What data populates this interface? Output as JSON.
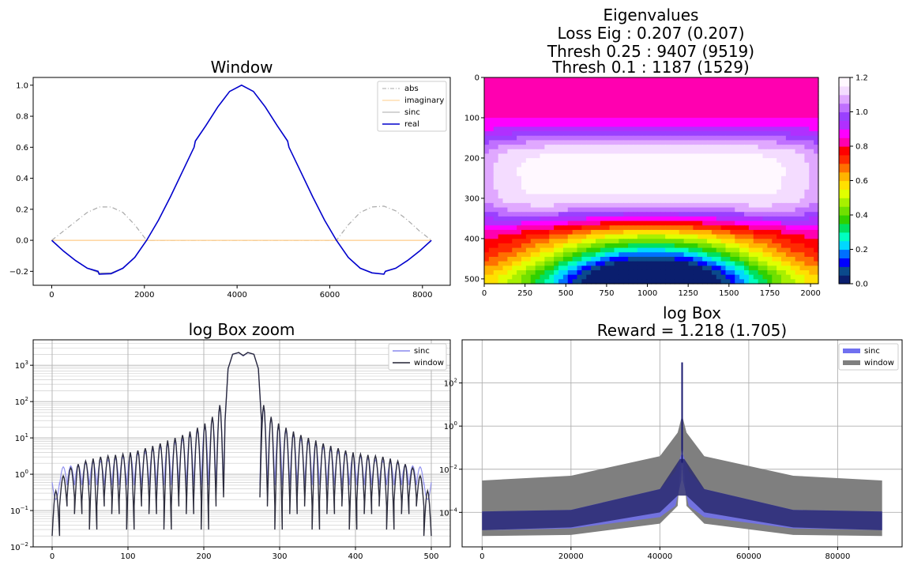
{
  "chart_data": [
    {
      "id": "window",
      "type": "line",
      "title": [
        "Window"
      ],
      "xlabel": "",
      "ylabel": "",
      "xlim": [
        -400,
        8600
      ],
      "ylim": [
        -0.29,
        1.05
      ],
      "xticks": [
        0,
        2000,
        4000,
        6000,
        8000
      ],
      "xtick_labels": [
        "0",
        "2000",
        "4000",
        "6000",
        "8000"
      ],
      "yticks": [
        -0.2,
        0.0,
        0.2,
        0.4,
        0.6,
        0.8,
        1.0
      ],
      "ytick_labels": [
        "−0.2",
        "0.0",
        "0.2",
        "0.4",
        "0.6",
        "0.8",
        "1.0"
      ],
      "grid": false,
      "legend_position": "upper right",
      "series": [
        {
          "name": "abs",
          "color": "#aaaaaa",
          "style": "dashdot",
          "points": [
            [
              0,
              0
            ],
            [
              256,
              0.06
            ],
            [
              512,
              0.12
            ],
            [
              768,
              0.18
            ],
            [
              1024,
              0.215
            ],
            [
              1280,
              0.215
            ],
            [
              1536,
              0.18
            ],
            [
              1792,
              0.1
            ],
            [
              2048,
              0.0
            ],
            [
              6144,
              0.0
            ],
            [
              6400,
              0.1
            ],
            [
              6656,
              0.18
            ],
            [
              6912,
              0.215
            ],
            [
              7168,
              0.22
            ],
            [
              7424,
              0.19
            ],
            [
              7680,
              0.13
            ],
            [
              7936,
              0.06
            ],
            [
              8192,
              0.0
            ]
          ]
        },
        {
          "name": "imaginary",
          "color": "#ffcc88",
          "style": "solid",
          "points": [
            [
              0,
              0
            ],
            [
              8192,
              0
            ]
          ]
        },
        {
          "name": "sinc",
          "color": "#aaaaaa",
          "style": "solid",
          "points": [
            [
              0,
              0
            ],
            [
              256,
              -0.07
            ],
            [
              512,
              -0.13
            ],
            [
              768,
              -0.18
            ],
            [
              1024,
              -0.21
            ],
            [
              1280,
              -0.21
            ],
            [
              1536,
              -0.18
            ],
            [
              1792,
              -0.11
            ],
            [
              2048,
              0.0
            ]
          ]
        },
        {
          "name": "real",
          "color": "#0000cc",
          "style": "solid",
          "points": [
            [
              0,
              0
            ],
            [
              256,
              -0.07
            ],
            [
              512,
              -0.13
            ],
            [
              768,
              -0.18
            ],
            [
              1000,
              -0.2
            ],
            [
              1024,
              -0.218
            ],
            [
              1280,
              -0.215
            ],
            [
              1536,
              -0.18
            ],
            [
              1792,
              -0.11
            ],
            [
              2048,
              0.0
            ],
            [
              2304,
              0.13
            ],
            [
              2560,
              0.28
            ],
            [
              2816,
              0.44
            ],
            [
              3072,
              0.6
            ],
            [
              3100,
              0.64
            ],
            [
              3328,
              0.74
            ],
            [
              3584,
              0.86
            ],
            [
              3840,
              0.96
            ],
            [
              4096,
              1.0
            ],
            [
              4352,
              0.96
            ],
            [
              4608,
              0.86
            ],
            [
              4864,
              0.74
            ],
            [
              5090,
              0.64
            ],
            [
              5120,
              0.6
            ],
            [
              5376,
              0.44
            ],
            [
              5632,
              0.28
            ],
            [
              5888,
              0.13
            ],
            [
              6144,
              0.0
            ],
            [
              6400,
              -0.11
            ],
            [
              6656,
              -0.18
            ],
            [
              6912,
              -0.21
            ],
            [
              7168,
              -0.218
            ],
            [
              7200,
              -0.2
            ],
            [
              7424,
              -0.18
            ],
            [
              7680,
              -0.13
            ],
            [
              7936,
              -0.07
            ],
            [
              8192,
              0.0
            ]
          ]
        }
      ]
    },
    {
      "id": "eigenvalues",
      "type": "heatmap",
      "title": [
        "Eigenvalues",
        "Loss Eig : 0.207 (0.207)",
        "Thresh 0.25 : 9407 (9519)",
        "Thresh 0.1 : 1187 (1529)"
      ],
      "xlim": [
        0,
        2048
      ],
      "ylim": [
        512,
        0
      ],
      "xticks": [
        0,
        250,
        500,
        750,
        1000,
        1250,
        1500,
        1750,
        2000
      ],
      "xtick_labels": [
        "0",
        "250",
        "500",
        "750",
        "1000",
        "1250",
        "1500",
        "1750",
        "2000"
      ],
      "yticks": [
        0,
        100,
        200,
        300,
        400,
        500
      ],
      "ytick_labels": [
        "0",
        "100",
        "200",
        "300",
        "400",
        "500"
      ],
      "colorbar": {
        "colormap": "gist_ncar",
        "range": [
          0,
          1.2
        ],
        "ticks": [
          0.0,
          0.2,
          0.4,
          0.6,
          0.8,
          1.0,
          1.2
        ],
        "tick_labels": [
          "0.0",
          "0.2",
          "0.4",
          "0.6",
          "0.8",
          "1.0",
          "1.2"
        ],
        "stops": [
          [
            0.0,
            "#000080"
          ],
          [
            0.05,
            "#0a1e6e"
          ],
          [
            0.1,
            "#0b4a8c"
          ],
          [
            0.15,
            "#0000ff"
          ],
          [
            0.2,
            "#0070ff"
          ],
          [
            0.25,
            "#00d8ff"
          ],
          [
            0.3,
            "#00ffc0"
          ],
          [
            0.35,
            "#00e060"
          ],
          [
            0.4,
            "#30d000"
          ],
          [
            0.45,
            "#70e000"
          ],
          [
            0.5,
            "#a8f000"
          ],
          [
            0.55,
            "#e0ff00"
          ],
          [
            0.6,
            "#ffe000"
          ],
          [
            0.65,
            "#ffb400"
          ],
          [
            0.7,
            "#ff7000"
          ],
          [
            0.75,
            "#ff2a00"
          ],
          [
            0.8,
            "#ff0000"
          ],
          [
            0.85,
            "#ff00b0"
          ],
          [
            0.9,
            "#ff00ff"
          ],
          [
            0.95,
            "#b030ff"
          ],
          [
            1.0,
            "#9a40ff"
          ],
          [
            1.05,
            "#c070ff"
          ],
          [
            1.1,
            "#e0a8ff"
          ],
          [
            1.15,
            "#f4dcff"
          ],
          [
            1.2,
            "#fff8ff"
          ]
        ]
      }
    },
    {
      "id": "logbox-zoom",
      "type": "line",
      "title": [
        "log Box zoom"
      ],
      "xscale": "linear",
      "yscale": "log",
      "xlim": [
        -25,
        525
      ],
      "ylim_log10": [
        -2,
        3.7
      ],
      "xticks": [
        0,
        100,
        200,
        300,
        400,
        500
      ],
      "xtick_labels": [
        "0",
        "100",
        "200",
        "300",
        "400",
        "500"
      ],
      "ytick_labels": [
        "10^-2",
        "10^-1",
        "10^0",
        "10^1",
        "10^2",
        "10^3"
      ],
      "grid": "both-major-minor",
      "legend_position": "upper right",
      "series": [
        {
          "name": "sinc",
          "color": "#8888ee",
          "lobes": [
            0.2,
            1.6,
            1.7,
            1.8,
            2.0,
            2.1,
            2.3,
            2.5,
            2.7,
            3.0,
            3.3,
            3.7,
            4.2,
            4.8,
            5.6,
            6.5,
            7.8,
            9.5,
            12,
            16,
            22,
            35,
            70
          ],
          "main": [
            [
              228,
              30
            ],
            [
              232,
              800
            ],
            [
              238,
              2000
            ],
            [
              246,
              2200
            ],
            [
              252,
              1800
            ],
            [
              258,
              2200
            ],
            [
              266,
              2000
            ],
            [
              272,
              800
            ],
            [
              276,
              30
            ]
          ],
          "edge_min": 0.6
        },
        {
          "name": "window",
          "color": "#222233",
          "lobes": [
            0.35,
            0.9,
            1.5,
            1.9,
            2.3,
            2.7,
            3.0,
            3.2,
            3.4,
            3.6,
            4.0,
            4.5,
            5.2,
            6.0,
            7.0,
            8.5,
            10,
            12,
            15,
            19,
            25,
            38,
            80
          ],
          "main": [
            [
              228,
              30
            ],
            [
              232,
              800
            ],
            [
              238,
              2000
            ],
            [
              246,
              2250
            ],
            [
              252,
              1850
            ],
            [
              258,
              2250
            ],
            [
              266,
              2000
            ],
            [
              272,
              800
            ],
            [
              276,
              30
            ]
          ],
          "edge_min": 0.02
        }
      ]
    },
    {
      "id": "logbox",
      "type": "area",
      "title": [
        "log Box",
        "Reward = 1.218 (1.705)"
      ],
      "xscale": "linear",
      "yscale": "log",
      "xlim": [
        -4500,
        94500
      ],
      "ylim_log10": [
        -5.6,
        4.0
      ],
      "xticks": [
        0,
        20000,
        40000,
        60000,
        80000
      ],
      "xtick_labels": [
        "0",
        "20000",
        "40000",
        "60000",
        "80000"
      ],
      "ytick_labels": [
        "10^-4",
        "10^-2",
        "10^0",
        "10^2"
      ],
      "grid": true,
      "legend_position": "upper right",
      "series": [
        {
          "name": "window",
          "color": "#7f7f7f",
          "center": 45000,
          "upper": [
            [
              0,
              0.003
            ],
            [
              20000,
              0.005
            ],
            [
              40000,
              0.04
            ],
            [
              44000,
              0.5
            ],
            [
              45000,
              3.2
            ],
            [
              46000,
              0.5
            ],
            [
              50000,
              0.04
            ],
            [
              70000,
              0.005
            ],
            [
              90000,
              0.003
            ]
          ],
          "lower": [
            [
              0,
              8e-06
            ],
            [
              20000,
              9e-06
            ],
            [
              40000,
              3e-05
            ],
            [
              44000,
              0.0002
            ],
            [
              45000,
              0.3
            ],
            [
              46000,
              0.0002
            ],
            [
              50000,
              3e-05
            ],
            [
              70000,
              9e-06
            ],
            [
              90000,
              8e-06
            ]
          ]
        },
        {
          "name": "sinc",
          "color": "#7070f0",
          "center": 45000,
          "upper": [
            [
              0,
              0.00011
            ],
            [
              20000,
              0.00013
            ],
            [
              40000,
              0.0012
            ],
            [
              43500,
              0.008
            ],
            [
              44800,
              0.05
            ],
            [
              45000,
              900
            ],
            [
              45200,
              0.05
            ],
            [
              46500,
              0.008
            ],
            [
              50000,
              0.0012
            ],
            [
              70000,
              0.00013
            ],
            [
              90000,
              0.00011
            ]
          ],
          "lower": [
            [
              0,
              1.5e-05
            ],
            [
              20000,
              1.8e-05
            ],
            [
              40000,
              6e-05
            ],
            [
              43500,
              0.0002
            ],
            [
              44800,
              0.003
            ],
            [
              45000,
              0.02
            ],
            [
              45200,
              0.003
            ],
            [
              46500,
              0.0002
            ],
            [
              50000,
              6e-05
            ],
            [
              70000,
              1.8e-05
            ],
            [
              90000,
              1.5e-05
            ]
          ]
        }
      ]
    }
  ]
}
